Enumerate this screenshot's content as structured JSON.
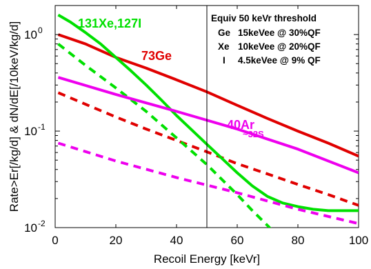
{
  "chart_data": {
    "type": "line",
    "title": "",
    "xlabel": "Recoil Energy [keVr]",
    "ylabel": "Rate>Er[/kg/d] & dN/dE[/10keV/kg/d]",
    "xlim": [
      0,
      100
    ],
    "ylim": [
      0.01,
      2
    ],
    "yscale": "log",
    "grid": false,
    "x_ticks": [
      0,
      20,
      40,
      60,
      80,
      100
    ],
    "x_tick_labels": [
      "0",
      "20",
      "40",
      "60",
      "80",
      "100"
    ],
    "y_ticks": [
      0.01,
      0.1,
      1
    ],
    "y_tick_labels": [
      "10",
      "10",
      "10"
    ],
    "y_tick_exponents": [
      "-2",
      "-1",
      "0"
    ],
    "threshold_line_x": 50,
    "series": [
      {
        "key": "ge-rate",
        "color": "#e00000",
        "dash": false,
        "x": [
          1,
          10,
          20,
          30,
          40,
          50,
          60,
          70,
          80,
          90,
          100
        ],
        "y": [
          1.0,
          0.8,
          0.58,
          0.45,
          0.34,
          0.255,
          0.185,
          0.135,
          0.1,
          0.075,
          0.055
        ]
      },
      {
        "key": "ge-spectrum",
        "color": "#e00000",
        "dash": true,
        "x": [
          1,
          10,
          20,
          30,
          40,
          50,
          60,
          70,
          80,
          90,
          100
        ],
        "y": [
          0.25,
          0.19,
          0.14,
          0.105,
          0.08,
          0.061,
          0.046,
          0.036,
          0.028,
          0.022,
          0.017
        ]
      },
      {
        "key": "xe-i-rate",
        "color": "#00e000",
        "dash": false,
        "x": [
          1,
          5,
          10,
          15,
          20,
          25,
          30,
          35,
          40,
          45,
          50,
          55,
          60,
          65,
          70,
          75,
          80,
          85,
          90,
          95,
          100
        ],
        "y": [
          1.6,
          1.35,
          1.05,
          0.8,
          0.58,
          0.42,
          0.3,
          0.21,
          0.145,
          0.103,
          0.073,
          0.052,
          0.037,
          0.027,
          0.021,
          0.018,
          0.0165,
          0.0155,
          0.015,
          0.015,
          0.015
        ]
      },
      {
        "key": "xe-i-spectrum",
        "color": "#00e000",
        "dash": true,
        "x": [
          1,
          10,
          20,
          30,
          40,
          50,
          60,
          65,
          70,
          72
        ],
        "y": [
          0.8,
          0.48,
          0.28,
          0.16,
          0.085,
          0.045,
          0.022,
          0.015,
          0.0105,
          0.009
        ]
      },
      {
        "key": "ar-rate",
        "color": "#ee00ee",
        "dash": false,
        "x": [
          1,
          20,
          40,
          60,
          80,
          100
        ],
        "y": [
          0.36,
          0.24,
          0.16,
          0.105,
          0.065,
          0.037
        ]
      },
      {
        "key": "ar-spectrum",
        "color": "#ee00ee",
        "dash": true,
        "x": [
          1,
          20,
          40,
          60,
          80,
          100
        ],
        "y": [
          0.075,
          0.049,
          0.033,
          0.023,
          0.0155,
          0.011
        ]
      }
    ],
    "annotations": [
      {
        "key": "xe",
        "text": "131Xe,127I",
        "color": "#00e000"
      },
      {
        "key": "ge",
        "text": "73Ge",
        "color": "#e00000"
      },
      {
        "key": "ar",
        "text": "40Ar",
        "color": "#ee00ee"
      },
      {
        "key": "s",
        "text": "~32S",
        "color": "#ee00ee"
      }
    ],
    "threshold_box": {
      "title": "Equiv 50 keVr threshold",
      "rows": [
        {
          "el": "Ge",
          "val": "15keVee @ 30%QF"
        },
        {
          "el": "Xe",
          "val": "10keVee @ 20%QF"
        },
        {
          "el": "I",
          "val": "4.5keVee @ 9% QF"
        }
      ]
    }
  }
}
